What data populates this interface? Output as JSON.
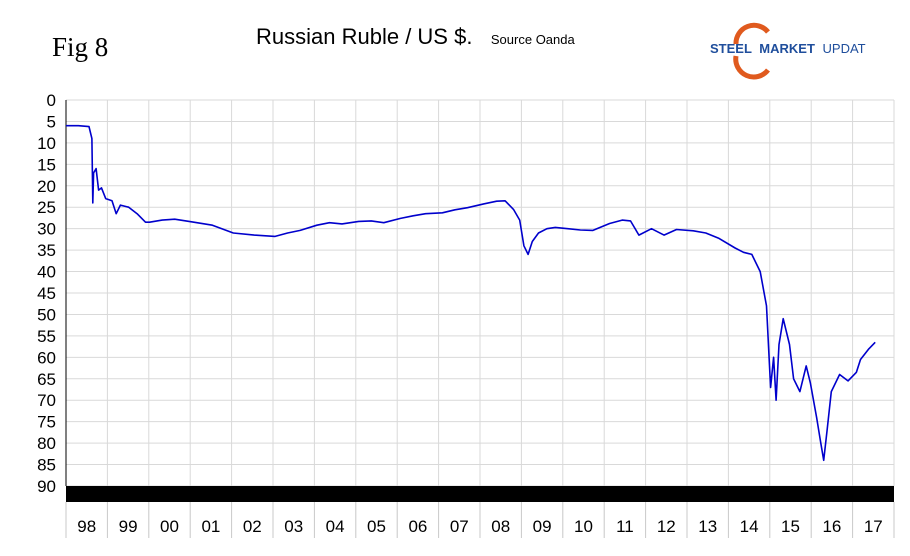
{
  "figure": {
    "label": "Fig 8"
  },
  "logo": {
    "text_left": "STEEL",
    "text_mid": "MARKET",
    "text_right": "UPDATE",
    "colors": {
      "arc": "#e05a1e",
      "blue": "#1f4e9c"
    }
  },
  "chart_data": {
    "type": "line",
    "title": "Russian Ruble / US $.",
    "subtitle": "Source Oanda",
    "xlabel": "",
    "ylabel": "",
    "y_inverted": true,
    "ylim": [
      0,
      90
    ],
    "yticks": [
      0,
      5,
      10,
      15,
      20,
      25,
      30,
      35,
      40,
      45,
      50,
      55,
      60,
      65,
      70,
      75,
      80,
      85,
      90
    ],
    "xlim": [
      1998.0,
      2017.8
    ],
    "xtick_labels": [
      "98",
      "99",
      "00",
      "01",
      "02",
      "03",
      "04",
      "05",
      "06",
      "07",
      "08",
      "09",
      "10",
      "11",
      "12",
      "13",
      "14",
      "15",
      "16",
      "17"
    ],
    "grid": true,
    "line_color": "#0000cc",
    "series": [
      {
        "x": [
          1998.0,
          1998.3,
          1998.55,
          1998.62,
          1998.64,
          1998.66,
          1998.72,
          1998.78,
          1998.85,
          1998.95,
          1999.1,
          1999.2,
          1999.3,
          1999.5,
          1999.7,
          1999.9,
          2000.0,
          2000.3,
          2000.6,
          2001.0,
          2001.5,
          2002.0,
          2002.5,
          2003.0,
          2003.3,
          2003.6,
          2004.0,
          2004.3,
          2004.6,
          2005.0,
          2005.3,
          2005.6,
          2006.0,
          2006.3,
          2006.6,
          2007.0,
          2007.3,
          2007.6,
          2008.0,
          2008.3,
          2008.5,
          2008.7,
          2008.85,
          2008.95,
          2009.05,
          2009.15,
          2009.3,
          2009.5,
          2009.7,
          2010.0,
          2010.3,
          2010.6,
          2011.0,
          2011.3,
          2011.5,
          2011.7,
          2012.0,
          2012.3,
          2012.6,
          2013.0,
          2013.3,
          2013.6,
          2014.0,
          2014.2,
          2014.4,
          2014.6,
          2014.75,
          2014.85,
          2014.92,
          2014.98,
          2015.05,
          2015.15,
          2015.3,
          2015.4,
          2015.55,
          2015.7,
          2015.8,
          2015.95,
          2016.05,
          2016.12,
          2016.2,
          2016.3,
          2016.5,
          2016.7,
          2016.9,
          2017.0,
          2017.2,
          2017.35
        ],
        "y": [
          6.0,
          6.0,
          6.2,
          9.0,
          24.0,
          17.0,
          16.0,
          21.0,
          20.5,
          23.0,
          23.5,
          26.5,
          24.5,
          25.0,
          26.5,
          28.5,
          28.5,
          28.0,
          27.8,
          28.4,
          29.2,
          31.0,
          31.5,
          31.8,
          31.0,
          30.4,
          29.2,
          28.6,
          28.9,
          28.3,
          28.2,
          28.6,
          27.6,
          27.0,
          26.5,
          26.3,
          25.6,
          25.1,
          24.2,
          23.6,
          23.5,
          25.5,
          28.0,
          34.0,
          36.0,
          33.0,
          31.0,
          30.0,
          29.7,
          30.0,
          30.3,
          30.4,
          28.8,
          28.0,
          28.2,
          31.5,
          30.0,
          31.5,
          30.2,
          30.5,
          31.0,
          32.2,
          34.5,
          35.5,
          36.0,
          40.0,
          48.0,
          67.0,
          60.0,
          70.0,
          57.0,
          51.0,
          57.0,
          65.0,
          68.0,
          62.0,
          66.0,
          74.0,
          80.0,
          84.0,
          77.0,
          68.0,
          64.0,
          65.5,
          63.5,
          60.5,
          58.0,
          56.5
        ]
      }
    ]
  }
}
